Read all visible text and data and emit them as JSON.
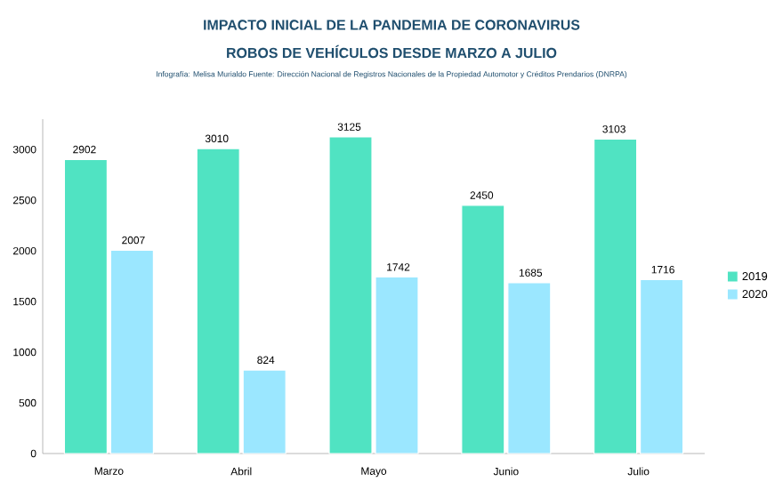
{
  "chart_data": {
    "type": "bar",
    "title": "IMPACTO INICIAL DE LA PANDEMIA DE CORONAVIRUS",
    "subtitle": "ROBOS DE VEHÍCULOS DESDE MARZO A JULIO",
    "annotations": [
      "Infografía: Melisa Murialdo Fuente: Dirección Nacional de Registros Nacionales de la Propiedad Automotor y Créditos Prendarios (DNRPA)"
    ],
    "categories": [
      "Marzo",
      "Abril",
      "Mayo",
      "Junio",
      "Julio"
    ],
    "series": [
      {
        "name": "2019",
        "color": "#50e3c2",
        "values": [
          2902,
          3010,
          3125,
          2450,
          3103
        ]
      },
      {
        "name": "2020",
        "color": "#9be7ff",
        "values": [
          2007,
          824,
          1742,
          1685,
          1716
        ]
      }
    ],
    "ylim": [
      0,
      3300
    ],
    "yticks": [
      0,
      500,
      1000,
      1500,
      2000,
      2500,
      3000
    ],
    "grid": false,
    "legend": "right",
    "data_labels": true
  }
}
